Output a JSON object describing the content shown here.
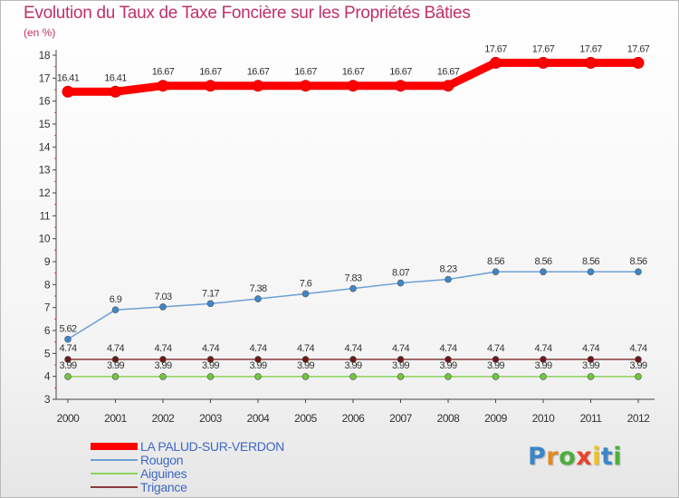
{
  "title": "Evolution du Taux de Taxe Foncière sur les Propriétés Bâties",
  "unit": "(en %)",
  "logo": {
    "letters": [
      "P",
      "r",
      "o",
      "x",
      "i",
      "t",
      "i"
    ],
    "colors": [
      "#3a86c8",
      "#e28a1e",
      "#4cae3b",
      "#e8432a",
      "#f0c21a",
      "#3a86c8",
      "#4cae3b"
    ]
  },
  "chart_data": {
    "type": "line",
    "title": "Evolution du Taux de Taxe Foncière sur les Propriétés Bâties",
    "ylabel": "(en %)",
    "x": [
      "2000",
      "2001",
      "2002",
      "2003",
      "2004",
      "2005",
      "2006",
      "2007",
      "2008",
      "2009",
      "2010",
      "2011",
      "2012"
    ],
    "ylim": [
      3,
      18
    ],
    "yticks": [
      "3",
      "4",
      "5",
      "6",
      "7",
      "8",
      "9",
      "10",
      "11",
      "12",
      "13",
      "14",
      "15",
      "16",
      "17",
      "18"
    ],
    "grid": false,
    "legend": "bottom-left",
    "series": [
      {
        "name": "LA PALUD-SUR-VERDON",
        "color": "#ff0000",
        "values": [
          16.41,
          16.41,
          16.67,
          16.67,
          16.67,
          16.67,
          16.67,
          16.67,
          16.67,
          17.67,
          17.67,
          17.67,
          17.67
        ],
        "labels": [
          "16.41",
          "16.41",
          "16.67",
          "16.67",
          "16.67",
          "16.67",
          "16.67",
          "16.67",
          "16.67",
          "17.67",
          "17.67",
          "17.67",
          "17.67"
        ]
      },
      {
        "name": "Rougon",
        "color": "#6d9fd6",
        "values": [
          5.62,
          6.9,
          7.03,
          7.17,
          7.38,
          7.6,
          7.83,
          8.07,
          8.23,
          8.56,
          8.56,
          8.56,
          8.56
        ],
        "labels": [
          "5.62",
          "6.9",
          "7.03",
          "7.17",
          "7.38",
          "7.6",
          "7.83",
          "8.07",
          "8.23",
          "8.56",
          "8.56",
          "8.56",
          "8.56"
        ]
      },
      {
        "name": "Aiguines",
        "color": "#8ad45a",
        "values": [
          3.99,
          3.99,
          3.99,
          3.99,
          3.99,
          3.99,
          3.99,
          3.99,
          3.99,
          3.99,
          3.99,
          3.99,
          3.99
        ],
        "labels": [
          "3.99",
          "3.99",
          "3.99",
          "3.99",
          "3.99",
          "3.99",
          "3.99",
          "3.99",
          "3.99",
          "3.99",
          "3.99",
          "3.99",
          "3.99"
        ]
      },
      {
        "name": "Trigance",
        "color": "#8a3a3a",
        "values": [
          4.74,
          4.74,
          4.74,
          4.74,
          4.74,
          4.74,
          4.74,
          4.74,
          4.74,
          4.74,
          4.74,
          4.74,
          4.74
        ],
        "labels": [
          "4.74",
          "4.74",
          "4.74",
          "4.74",
          "4.74",
          "4.74",
          "4.74",
          "4.74",
          "4.74",
          "4.74",
          "4.74",
          "4.74",
          "4.74"
        ]
      }
    ]
  }
}
